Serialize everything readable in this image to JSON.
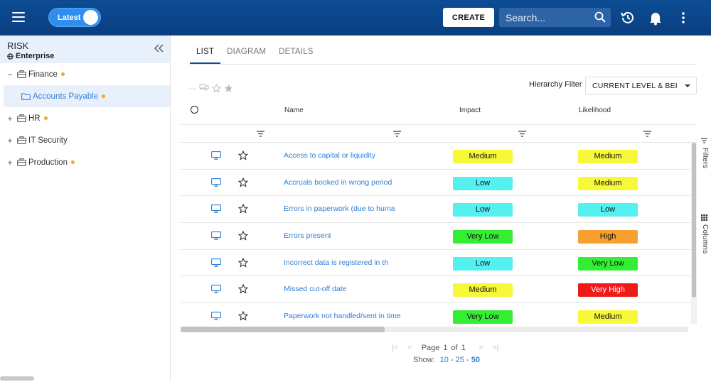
{
  "header": {
    "toggle_label": "Latest",
    "create_label": "CREATE",
    "search_placeholder": "Search..."
  },
  "sidebar": {
    "title": "RISK",
    "subtitle": "Enterprise",
    "items": [
      {
        "toggle": "−",
        "label": "Finance"
      },
      {
        "toggle": "",
        "label": "Accounts Payable"
      },
      {
        "toggle": "+",
        "label": "HR"
      },
      {
        "toggle": "+",
        "label": "IT Security"
      },
      {
        "toggle": "+",
        "label": "Production"
      }
    ]
  },
  "tabs": [
    "LIST",
    "DIAGRAM",
    "DETAILS"
  ],
  "toolbar": {
    "more": "···",
    "hierarchy_filter_label": "Hierarchy Filter",
    "hierarchy_filter_value": "CURRENT LEVEL & BEI"
  },
  "columns": {
    "name": "Name",
    "impact": "Impact",
    "likelihood": "Likelihood"
  },
  "rows": [
    {
      "name": "Access to capital or liquidity",
      "impact": "Medium",
      "likelihood": "Medium"
    },
    {
      "name": "Accruals booked in wrong period",
      "impact": "Low",
      "likelihood": "Medium"
    },
    {
      "name": "Errors in paperwork (due to huma",
      "impact": "Low",
      "likelihood": "Low"
    },
    {
      "name": "Errors present",
      "impact": "Very Low",
      "likelihood": "High"
    },
    {
      "name": "Incorrect data is registered in th",
      "impact": "Low",
      "likelihood": "Very Low"
    },
    {
      "name": "Missed cut-off date",
      "impact": "Medium",
      "likelihood": "Very High"
    },
    {
      "name": "Paperwork not handled/sent in time",
      "impact": "Very Low",
      "likelihood": "Medium"
    }
  ],
  "level_colors": {
    "Very Low": "#33ee33",
    "Low": "#55f0f0",
    "Medium": "#f8f83a",
    "High": "#f7a030",
    "Very High": "#ee1a1a"
  },
  "side_panels": {
    "filters": "Filters",
    "columns": "Columns"
  },
  "pager": {
    "page_label": "Page",
    "current": "1",
    "of_label": "of",
    "total": "1",
    "show_label": "Show:",
    "sizes": [
      "10",
      "25",
      "50"
    ],
    "sep": "-"
  }
}
